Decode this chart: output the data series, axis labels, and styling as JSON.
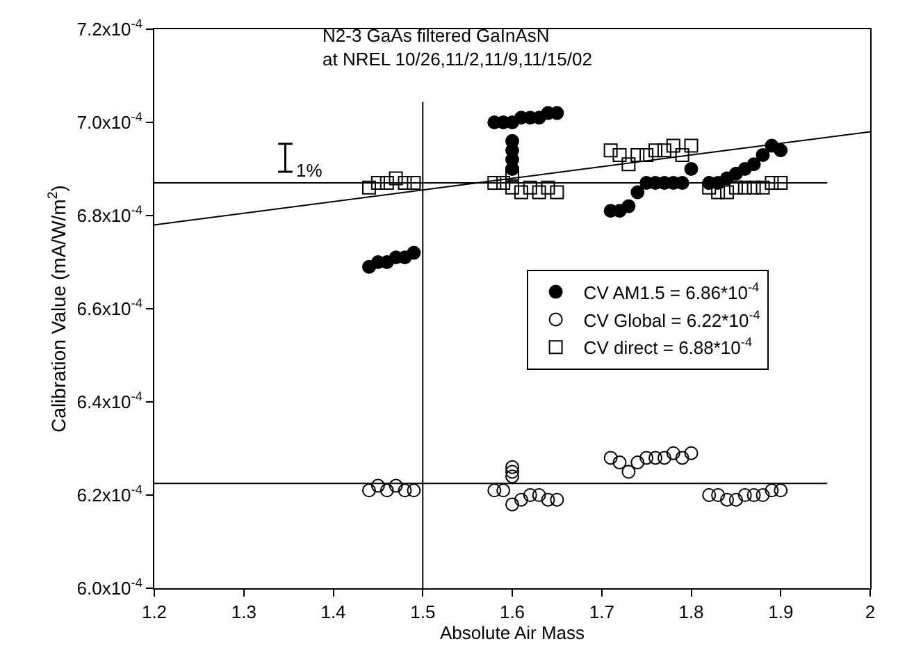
{
  "chart_data": {
    "type": "scatter",
    "title": "N2-3 GaAs filtered GaInAsN\nat NREL 10/26,11/2,11/9,11/15/02",
    "xlabel": "Absolute Air Mass",
    "ylabel": "Calibration Value (mA/W/m$^{2}$)",
    "annotations": [
      "1%"
    ],
    "series": [
      {
        "name": "CV AM1.5 = 6.86*10$^{-4}$",
        "color": "#000000",
        "marker": "circle",
        "x": [
          1.44,
          1.45,
          1.46,
          1.47,
          1.48,
          1.49,
          1.58,
          1.59,
          1.6,
          1.61,
          1.62,
          1.63,
          1.64,
          1.65,
          1.6,
          1.6,
          1.6,
          1.6,
          1.71,
          1.72,
          1.73,
          1.74,
          1.75,
          1.76,
          1.77,
          1.78,
          1.79,
          1.8,
          1.82,
          1.83,
          1.84,
          1.85,
          1.86,
          1.87,
          1.88,
          1.89,
          1.9
        ],
        "values": [
          0.000669,
          0.00067,
          0.00067,
          0.000671,
          0.000671,
          0.000672,
          0.0007,
          0.0007,
          0.0007,
          0.000701,
          0.000701,
          0.000701,
          0.000702,
          0.000702,
          0.000696,
          0.000694,
          0.000692,
          0.00069,
          0.000681,
          0.000681,
          0.000682,
          0.000685,
          0.000687,
          0.000687,
          0.000687,
          0.000687,
          0.000687,
          0.00069,
          0.000687,
          0.000687,
          0.000688,
          0.000689,
          0.00069,
          0.000691,
          0.000693,
          0.000695,
          0.000694
        ]
      },
      {
        "name": "CV Global = 6.22*10$^{-4}$",
        "color": "#000000",
        "marker": "circle-open",
        "x": [
          1.44,
          1.45,
          1.46,
          1.47,
          1.48,
          1.49,
          1.58,
          1.59,
          1.6,
          1.6,
          1.6,
          1.6,
          1.61,
          1.62,
          1.63,
          1.64,
          1.65,
          1.71,
          1.72,
          1.73,
          1.74,
          1.75,
          1.76,
          1.77,
          1.78,
          1.79,
          1.8,
          1.82,
          1.83,
          1.84,
          1.85,
          1.86,
          1.87,
          1.88,
          1.89,
          1.9
        ],
        "values": [
          0.000621,
          0.000622,
          0.000621,
          0.000622,
          0.000621,
          0.000621,
          0.000621,
          0.000621,
          0.000626,
          0.000625,
          0.000624,
          0.000618,
          0.000619,
          0.00062,
          0.00062,
          0.000619,
          0.000619,
          0.000628,
          0.000627,
          0.000625,
          0.000627,
          0.000628,
          0.000628,
          0.000628,
          0.000629,
          0.000628,
          0.000629,
          0.00062,
          0.00062,
          0.000619,
          0.000619,
          0.00062,
          0.00062,
          0.00062,
          0.000621,
          0.000621
        ]
      },
      {
        "name": "CV direct = 6.88*10$^{-4}$",
        "color": "#000000",
        "marker": "square-open",
        "x": [
          1.44,
          1.45,
          1.46,
          1.47,
          1.48,
          1.49,
          1.58,
          1.59,
          1.6,
          1.6,
          1.61,
          1.62,
          1.63,
          1.64,
          1.65,
          1.71,
          1.72,
          1.73,
          1.74,
          1.75,
          1.76,
          1.77,
          1.78,
          1.79,
          1.8,
          1.82,
          1.83,
          1.84,
          1.85,
          1.86,
          1.87,
          1.88,
          1.89,
          1.9
        ],
        "values": [
          0.000686,
          0.000687,
          0.000687,
          0.000688,
          0.000687,
          0.000687,
          0.000687,
          0.000687,
          0.000689,
          0.000686,
          0.000685,
          0.000686,
          0.000685,
          0.000686,
          0.000685,
          0.000694,
          0.000693,
          0.000691,
          0.000693,
          0.000693,
          0.000694,
          0.000694,
          0.000695,
          0.000693,
          0.000695,
          0.000686,
          0.000685,
          0.000685,
          0.000686,
          0.000686,
          0.000686,
          0.000686,
          0.000687,
          0.000687
        ]
      },
      {
        "type": "line",
        "color": "#000000",
        "x": [
          1.2,
          2.0
        ],
        "values": [
          0.000678,
          0.000698
        ]
      }
    ],
    "ref_lines": [
      {
        "axis": "y",
        "value": 0.000687,
        "color": "#000000"
      },
      {
        "axis": "y",
        "value": 0.0006225,
        "color": "#000000"
      },
      {
        "axis": "x",
        "value": 1.5,
        "color": "#000000"
      }
    ],
    "xlim": [
      1.2,
      2.0
    ],
    "xticks": [
      1.2,
      1.3,
      1.4,
      1.5,
      1.6,
      1.7,
      1.8,
      1.9,
      2
    ],
    "ylim": [
      0.0006,
      0.00072
    ],
    "yticks": [
      {
        "value": 0.0006,
        "label": "6.0x10$^{-4}$"
      },
      {
        "value": 0.00062,
        "label": "6.2x10$^{-4}$"
      },
      {
        "value": 0.00064,
        "label": "6.4x10$^{-4}$"
      },
      {
        "value": 0.00066,
        "label": "6.6x10$^{-4}$"
      },
      {
        "value": 0.00068,
        "label": "6.8x10$^{-4}$"
      },
      {
        "value": 0.0007,
        "label": "7.0x10$^{-4}$"
      },
      {
        "value": 0.00072,
        "label": "7.2x10$^{-4}$"
      }
    ],
    "legend": "right"
  }
}
